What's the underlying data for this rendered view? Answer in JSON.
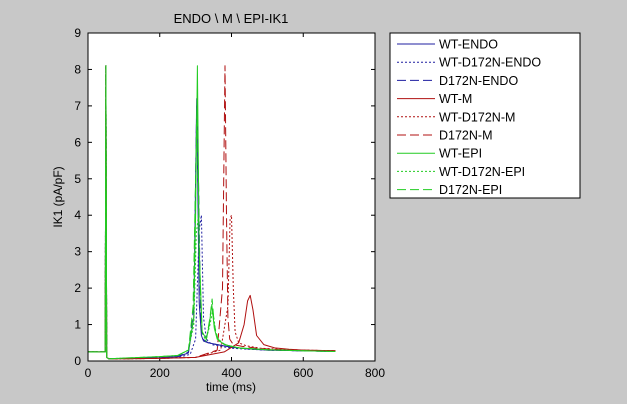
{
  "chart_data": {
    "type": "line",
    "title": "ENDO \\ M \\ EPI-IK1",
    "xlabel": "time (ms)",
    "ylabel": "IK1 (pA/pF)",
    "xlim": [
      0,
      800
    ],
    "ylim": [
      0,
      9
    ],
    "xticks": [
      "0",
      "200",
      "400",
      "600",
      "800"
    ],
    "yticks": [
      "0",
      "1",
      "2",
      "3",
      "4",
      "5",
      "6",
      "7",
      "8",
      "9"
    ],
    "grid": false,
    "legend_position": "outside-right",
    "series": [
      {
        "name": "WT-ENDO",
        "color": "#1f1fa0",
        "dash": "solid",
        "x": [
          0,
          48,
          50,
          52,
          58,
          100,
          200,
          250,
          280,
          295,
          303,
          310,
          316,
          322,
          335,
          360,
          400,
          450,
          500,
          600,
          690
        ],
        "y": [
          0.25,
          0.25,
          8.1,
          0.1,
          0.06,
          0.07,
          0.09,
          0.12,
          0.22,
          1.2,
          7.2,
          1.6,
          0.7,
          0.55,
          0.5,
          0.45,
          0.38,
          0.33,
          0.3,
          0.28,
          0.26
        ]
      },
      {
        "name": "WT-D172N-ENDO",
        "color": "#1f1fa0",
        "dash": "2,2",
        "x": [
          0,
          48,
          50,
          52,
          58,
          100,
          200,
          250,
          285,
          300,
          310,
          316,
          322,
          330,
          345,
          370,
          400,
          450,
          500,
          600,
          690
        ],
        "y": [
          0.25,
          0.25,
          8.1,
          0.1,
          0.06,
          0.06,
          0.08,
          0.1,
          0.18,
          0.6,
          3.6,
          4.0,
          1.2,
          0.6,
          0.45,
          0.4,
          0.35,
          0.32,
          0.3,
          0.28,
          0.26
        ]
      },
      {
        "name": "D172N-ENDO",
        "color": "#1f1fa0",
        "dash": "9,4",
        "x": [
          0,
          48,
          50,
          52,
          58,
          100,
          200,
          250,
          280,
          295,
          303,
          308,
          314,
          320,
          335,
          360,
          400,
          450,
          500,
          600,
          690
        ],
        "y": [
          0.25,
          0.25,
          8.1,
          0.1,
          0.06,
          0.07,
          0.09,
          0.12,
          0.25,
          1.5,
          7.0,
          5.0,
          1.2,
          0.6,
          0.5,
          0.45,
          0.38,
          0.33,
          0.3,
          0.28,
          0.26
        ]
      },
      {
        "name": "WT-M",
        "color": "#b01010",
        "dash": "solid",
        "x": [
          0,
          48,
          50,
          52,
          58,
          100,
          200,
          300,
          380,
          420,
          435,
          445,
          452,
          460,
          470,
          490,
          520,
          560,
          600,
          690
        ],
        "y": [
          0.25,
          0.25,
          8.1,
          0.1,
          0.06,
          0.06,
          0.07,
          0.1,
          0.25,
          0.5,
          1.0,
          1.65,
          1.8,
          1.4,
          0.7,
          0.45,
          0.36,
          0.32,
          0.3,
          0.28
        ]
      },
      {
        "name": "WT-D172N-M",
        "color": "#b01010",
        "dash": "2,2",
        "x": [
          0,
          48,
          50,
          52,
          58,
          100,
          200,
          300,
          370,
          390,
          396,
          400,
          405,
          410,
          420,
          440,
          480,
          540,
          600,
          690
        ],
        "y": [
          0.25,
          0.25,
          8.1,
          0.1,
          0.06,
          0.06,
          0.07,
          0.1,
          0.3,
          1.5,
          3.9,
          4.0,
          2.0,
          0.8,
          0.5,
          0.42,
          0.35,
          0.32,
          0.3,
          0.28
        ]
      },
      {
        "name": "D172N-M",
        "color": "#b01010",
        "dash": "9,4",
        "x": [
          0,
          48,
          50,
          52,
          58,
          100,
          200,
          300,
          360,
          375,
          382,
          386,
          390,
          395,
          405,
          430,
          480,
          540,
          600,
          690
        ],
        "y": [
          0.25,
          0.25,
          8.1,
          0.1,
          0.06,
          0.06,
          0.07,
          0.1,
          0.3,
          2.0,
          8.1,
          4.0,
          1.2,
          0.6,
          0.45,
          0.4,
          0.34,
          0.31,
          0.3,
          0.28
        ]
      },
      {
        "name": "WT-EPI",
        "color": "#22cc22",
        "dash": "solid",
        "x": [
          0,
          48,
          50,
          52,
          58,
          100,
          200,
          250,
          280,
          295,
          300,
          305,
          310,
          318,
          330,
          338,
          345,
          352,
          360,
          380,
          420,
          500,
          600,
          690
        ],
        "y": [
          0.25,
          0.25,
          8.1,
          0.1,
          0.06,
          0.08,
          0.12,
          0.15,
          0.3,
          1.2,
          4.0,
          8.1,
          3.0,
          0.8,
          0.6,
          1.0,
          1.55,
          0.9,
          0.6,
          0.45,
          0.36,
          0.31,
          0.28,
          0.26
        ]
      },
      {
        "name": "WT-D172N-EPI",
        "color": "#22cc22",
        "dash": "2,2",
        "x": [
          0,
          48,
          50,
          52,
          58,
          100,
          200,
          250,
          280,
          295,
          302,
          308,
          313,
          318,
          328,
          340,
          348,
          356,
          365,
          390,
          430,
          500,
          600,
          690
        ],
        "y": [
          0.25,
          0.25,
          8.1,
          0.1,
          0.06,
          0.08,
          0.12,
          0.15,
          0.3,
          1.0,
          3.5,
          4.0,
          2.0,
          0.8,
          0.55,
          1.0,
          1.4,
          0.8,
          0.55,
          0.42,
          0.35,
          0.31,
          0.28,
          0.26
        ]
      },
      {
        "name": "D172N-EPI",
        "color": "#22cc22",
        "dash": "9,4",
        "x": [
          0,
          48,
          50,
          52,
          58,
          100,
          200,
          250,
          280,
          293,
          300,
          304,
          310,
          318,
          330,
          340,
          346,
          352,
          362,
          385,
          425,
          500,
          600,
          690
        ],
        "y": [
          0.25,
          0.25,
          8.1,
          0.1,
          0.06,
          0.08,
          0.12,
          0.15,
          0.3,
          1.5,
          5.0,
          7.2,
          3.0,
          0.8,
          0.6,
          1.2,
          1.7,
          1.0,
          0.6,
          0.44,
          0.35,
          0.31,
          0.28,
          0.26
        ]
      }
    ]
  }
}
